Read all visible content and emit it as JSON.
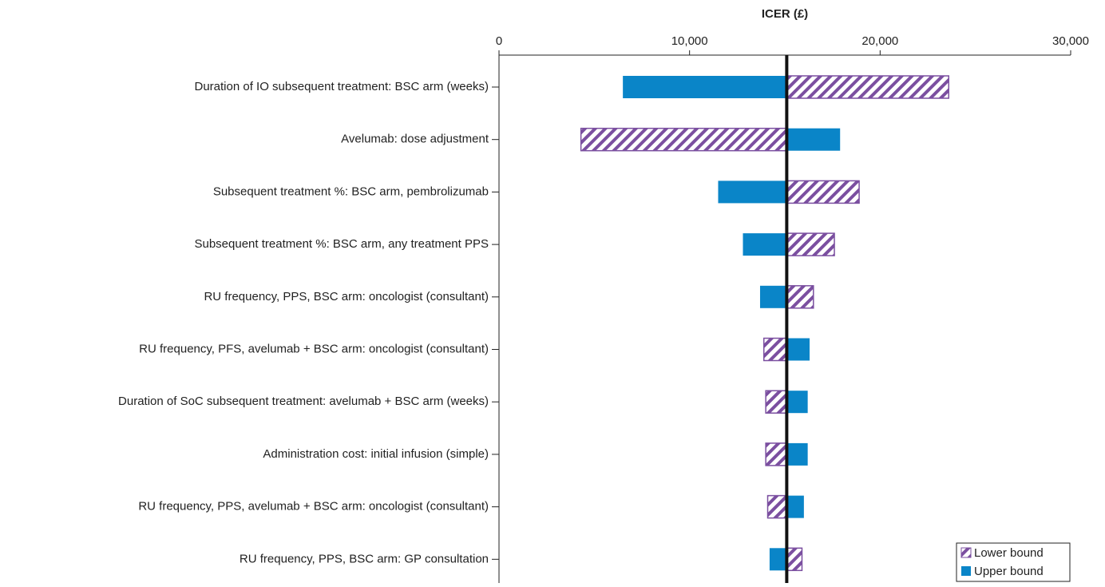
{
  "chart_data": {
    "type": "tornado",
    "x_label": "ICER (£)",
    "categories": [
      "Duration of IO subsequent treatment: BSC arm (weeks)",
      "Avelumab: dose adjustment",
      "Subsequent treatment %: BSC arm, pembrolizumab",
      "Subsequent treatment %: BSC arm, any treatment PPS",
      "RU frequency, PPS, BSC arm: oncologist (consultant)",
      "RU frequency, PFS, avelumab + BSC arm: oncologist (consultant)",
      "Duration of SoC subsequent treatment: avelumab + BSC arm (weeks)",
      "Administration cost: initial infusion (simple)",
      "RU frequency, PPS, avelumab + BSC arm: oncologist (consultant)",
      "RU frequency, PPS, BSC arm: GP consultation"
    ],
    "base_value": 15100,
    "series": [
      {
        "name": "Lower bound",
        "color": "#7b4fa0",
        "pattern": "hatch",
        "values": [
          23600,
          4300,
          18900,
          17600,
          16500,
          13900,
          14000,
          14000,
          14100,
          15900
        ]
      },
      {
        "name": "Upper bound",
        "color": "#0a85c8",
        "pattern": "solid",
        "values": [
          6500,
          17900,
          11500,
          12800,
          13700,
          16300,
          16200,
          16200,
          16000,
          14200
        ]
      }
    ],
    "xlim": [
      0,
      30000
    ],
    "xticks": [
      0,
      {
        "value": 10000,
        "label": "10,000"
      },
      {
        "value": 20000,
        "label": "20,000"
      },
      {
        "value": 30000,
        "label": "30,000"
      }
    ],
    "legend_position": "lower right"
  }
}
